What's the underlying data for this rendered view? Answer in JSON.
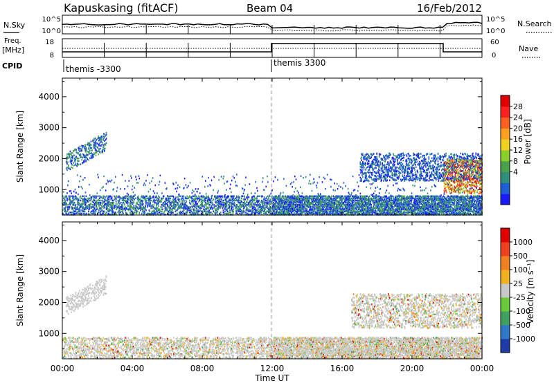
{
  "header": {
    "station": "Kapuskasing (fitACF)",
    "beam": "Beam 04",
    "date": "16/Feb/2012"
  },
  "top_panels": {
    "nsky_label": "N.Sky",
    "nsky_ticks": [
      "10^5",
      "10^0"
    ],
    "nsearch_label": "N.Search",
    "freq_label_line1": "Freq.",
    "freq_label_line2": "[MHz]",
    "freq_ticks": [
      "18",
      "8"
    ],
    "nave_label": "Nave",
    "nave_ticks": [
      "60",
      "0"
    ],
    "cpid_label": "CPID",
    "cpid_segments": [
      {
        "label": "themis -3300",
        "start_hour": 0,
        "end_hour": 12
      },
      {
        "label": "themis 3300",
        "start_hour": 12,
        "end_hour": 24
      }
    ]
  },
  "x_axis": {
    "title": "Time UT",
    "tick_labels": [
      "00:00",
      "04:00",
      "08:00",
      "12:00",
      "16:00",
      "20:00",
      "00:00"
    ]
  },
  "chart_data": [
    {
      "type": "heatmap",
      "title": "",
      "xlabel": "Time UT",
      "ylabel": "Slant Range [km]",
      "xlim": [
        0,
        24
      ],
      "ylim": [
        180,
        4600
      ],
      "y_tick_labels": [
        "1000",
        "2000",
        "3000",
        "4000"
      ],
      "y_ticks": [
        1000,
        2000,
        3000,
        4000
      ],
      "colorbar": {
        "label": "Power [dB]",
        "tick_labels": [
          "28",
          "24",
          "20",
          "16",
          "12",
          "8",
          "4"
        ],
        "colors": [
          "#1a1aff",
          "#1f5fd6",
          "#2f8f7a",
          "#4aa34a",
          "#8ccf2a",
          "#f0d020",
          "#ffa020",
          "#ff6020",
          "#ff2020",
          "#e00000"
        ]
      },
      "features": [
        {
          "region": "ground scatter / near range",
          "x_range": [
            0,
            24
          ],
          "range_km": [
            200,
            800
          ],
          "level_db": [
            4,
            16
          ]
        },
        {
          "region": "early far range patch",
          "x_range": [
            0.2,
            2.5
          ],
          "range_km": [
            1700,
            2700
          ],
          "level_db": [
            4,
            16
          ]
        },
        {
          "region": "evening band",
          "x_range": [
            17,
            24
          ],
          "range_km": [
            1300,
            2200
          ],
          "level_db": [
            4,
            16
          ]
        },
        {
          "region": "strong echoes",
          "x_range": [
            21.8,
            24
          ],
          "range_km": [
            1000,
            2000
          ],
          "level_db": [
            16,
            28
          ]
        }
      ]
    },
    {
      "type": "heatmap",
      "title": "",
      "xlabel": "Time UT",
      "ylabel": "Slant Range [km]",
      "xlim": [
        0,
        24
      ],
      "ylim": [
        180,
        4600
      ],
      "y_tick_labels": [
        "1000",
        "2000",
        "3000",
        "4000"
      ],
      "y_ticks": [
        1000,
        2000,
        3000,
        4000
      ],
      "colorbar": {
        "label": "Velocity [m s⁻¹]",
        "tick_labels": [
          "1000",
          "500",
          "100",
          "25",
          "-25",
          "-100",
          "-500",
          "-1000"
        ],
        "colors": [
          "#1f3ba8",
          "#2f77c8",
          "#3fa060",
          "#6acb3a",
          "#c8c8c8",
          "#f0b020",
          "#f08020",
          "#f04020",
          "#e00000"
        ]
      },
      "features": [
        {
          "region": "ground scatter (grey, low velocity)",
          "x_range": [
            0,
            24
          ],
          "range_km": [
            200,
            900
          ],
          "velocity": [
            -25,
            25
          ]
        },
        {
          "region": "early far range patch",
          "x_range": [
            0.2,
            2.5
          ],
          "range_km": [
            1700,
            2700
          ],
          "velocity": [
            -25,
            25
          ]
        },
        {
          "region": "evening band",
          "x_range": [
            16.5,
            24
          ],
          "range_km": [
            1200,
            2300
          ],
          "velocity": [
            -25,
            25
          ]
        }
      ]
    }
  ]
}
